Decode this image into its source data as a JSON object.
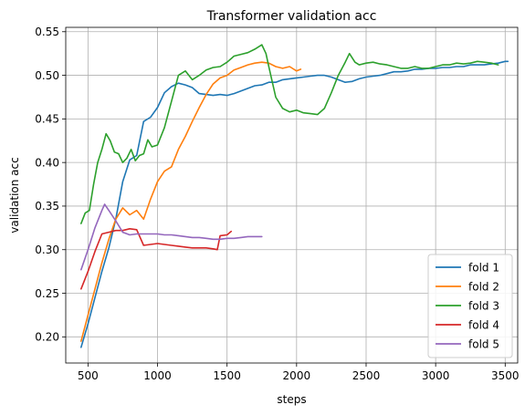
{
  "chart_data": {
    "type": "line",
    "title": "Transformer validation acc",
    "xlabel": "steps",
    "ylabel": "validation acc",
    "xlim": [
      340,
      3590
    ],
    "ylim": [
      0.17,
      0.555
    ],
    "xticks": [
      500,
      1000,
      1500,
      2000,
      2500,
      3000,
      3500
    ],
    "xtick_labels": [
      "500",
      "1000",
      "1500",
      "2000",
      "2500",
      "3000",
      "3500"
    ],
    "yticks": [
      0.2,
      0.25,
      0.3,
      0.35,
      0.4,
      0.45,
      0.5,
      0.55
    ],
    "ytick_labels": [
      "0.20",
      "0.25",
      "0.30",
      "0.35",
      "0.40",
      "0.45",
      "0.50",
      "0.55"
    ],
    "grid": true,
    "legend_position": "lower-right",
    "series": [
      {
        "name": "fold 1",
        "color": "#1f77b4",
        "x": [
          450,
          500,
          550,
          600,
          650,
          700,
          750,
          800,
          850,
          900,
          950,
          1000,
          1050,
          1100,
          1150,
          1200,
          1250,
          1300,
          1350,
          1400,
          1450,
          1500,
          1550,
          1600,
          1650,
          1700,
          1750,
          1800,
          1850,
          1900,
          1950,
          2000,
          2050,
          2100,
          2150,
          2200,
          2250,
          2300,
          2350,
          2400,
          2450,
          2500,
          2550,
          2600,
          2650,
          2700,
          2750,
          2800,
          2850,
          2900,
          2950,
          3000,
          3050,
          3100,
          3150,
          3200,
          3250,
          3300,
          3350,
          3400,
          3450,
          3500,
          3520
        ],
        "y": [
          0.188,
          0.215,
          0.245,
          0.275,
          0.302,
          0.335,
          0.378,
          0.403,
          0.408,
          0.447,
          0.452,
          0.463,
          0.48,
          0.487,
          0.491,
          0.489,
          0.486,
          0.479,
          0.478,
          0.477,
          0.478,
          0.477,
          0.479,
          0.482,
          0.485,
          0.488,
          0.489,
          0.492,
          0.492,
          0.495,
          0.496,
          0.497,
          0.498,
          0.499,
          0.5,
          0.5,
          0.498,
          0.495,
          0.492,
          0.493,
          0.496,
          0.498,
          0.499,
          0.5,
          0.502,
          0.504,
          0.504,
          0.505,
          0.507,
          0.507,
          0.508,
          0.508,
          0.509,
          0.509,
          0.51,
          0.51,
          0.512,
          0.512,
          0.512,
          0.513,
          0.514,
          0.516,
          0.516
        ]
      },
      {
        "name": "fold 2",
        "color": "#ff7f0e",
        "x": [
          450,
          500,
          550,
          600,
          650,
          700,
          750,
          800,
          850,
          900,
          950,
          1000,
          1050,
          1100,
          1150,
          1200,
          1250,
          1300,
          1350,
          1400,
          1450,
          1500,
          1550,
          1600,
          1650,
          1700,
          1750,
          1800,
          1850,
          1900,
          1950,
          2000,
          2030
        ],
        "y": [
          0.195,
          0.225,
          0.255,
          0.285,
          0.312,
          0.335,
          0.348,
          0.34,
          0.345,
          0.335,
          0.358,
          0.378,
          0.39,
          0.395,
          0.415,
          0.43,
          0.447,
          0.463,
          0.478,
          0.49,
          0.497,
          0.5,
          0.506,
          0.509,
          0.512,
          0.514,
          0.515,
          0.514,
          0.51,
          0.508,
          0.51,
          0.505,
          0.507
        ]
      },
      {
        "name": "fold 3",
        "color": "#2ca02c",
        "x": [
          450,
          480,
          510,
          540,
          570,
          600,
          630,
          660,
          690,
          720,
          750,
          780,
          810,
          840,
          870,
          900,
          930,
          960,
          1000,
          1050,
          1100,
          1150,
          1200,
          1250,
          1300,
          1350,
          1400,
          1450,
          1500,
          1550,
          1600,
          1650,
          1700,
          1750,
          1780,
          1800,
          1850,
          1900,
          1950,
          2000,
          2050,
          2100,
          2150,
          2200,
          2250,
          2300,
          2350,
          2380,
          2420,
          2450,
          2500,
          2550,
          2600,
          2650,
          2700,
          2750,
          2800,
          2850,
          2900,
          2950,
          3000,
          3050,
          3100,
          3150,
          3200,
          3250,
          3300,
          3350,
          3400,
          3450
        ],
        "y": [
          0.33,
          0.342,
          0.345,
          0.375,
          0.4,
          0.415,
          0.433,
          0.425,
          0.412,
          0.41,
          0.4,
          0.405,
          0.415,
          0.402,
          0.408,
          0.41,
          0.426,
          0.418,
          0.42,
          0.44,
          0.47,
          0.5,
          0.505,
          0.495,
          0.5,
          0.506,
          0.509,
          0.51,
          0.515,
          0.522,
          0.524,
          0.526,
          0.53,
          0.535,
          0.525,
          0.51,
          0.475,
          0.462,
          0.458,
          0.46,
          0.457,
          0.456,
          0.455,
          0.462,
          0.48,
          0.5,
          0.515,
          0.525,
          0.515,
          0.512,
          0.514,
          0.515,
          0.513,
          0.512,
          0.51,
          0.508,
          0.508,
          0.51,
          0.508,
          0.508,
          0.51,
          0.512,
          0.512,
          0.514,
          0.513,
          0.514,
          0.516,
          0.515,
          0.514,
          0.512
        ]
      },
      {
        "name": "fold 4",
        "color": "#d62728",
        "x": [
          450,
          500,
          550,
          600,
          650,
          700,
          750,
          800,
          850,
          900,
          950,
          1000,
          1050,
          1100,
          1150,
          1200,
          1250,
          1300,
          1350,
          1400,
          1430,
          1450,
          1500,
          1530
        ],
        "y": [
          0.255,
          0.275,
          0.298,
          0.318,
          0.32,
          0.322,
          0.322,
          0.324,
          0.323,
          0.305,
          0.306,
          0.307,
          0.306,
          0.305,
          0.304,
          0.303,
          0.302,
          0.302,
          0.302,
          0.301,
          0.3,
          0.316,
          0.317,
          0.321
        ]
      },
      {
        "name": "fold 5",
        "color": "#9467bd",
        "x": [
          450,
          500,
          550,
          600,
          620,
          650,
          700,
          750,
          800,
          850,
          900,
          950,
          1000,
          1050,
          1100,
          1150,
          1200,
          1250,
          1300,
          1350,
          1400,
          1450,
          1500,
          1550,
          1600,
          1650,
          1700,
          1750
        ],
        "y": [
          0.277,
          0.3,
          0.325,
          0.345,
          0.352,
          0.345,
          0.333,
          0.32,
          0.317,
          0.318,
          0.318,
          0.318,
          0.318,
          0.317,
          0.317,
          0.316,
          0.315,
          0.314,
          0.314,
          0.313,
          0.312,
          0.312,
          0.313,
          0.313,
          0.314,
          0.315,
          0.315,
          0.315
        ]
      }
    ]
  }
}
